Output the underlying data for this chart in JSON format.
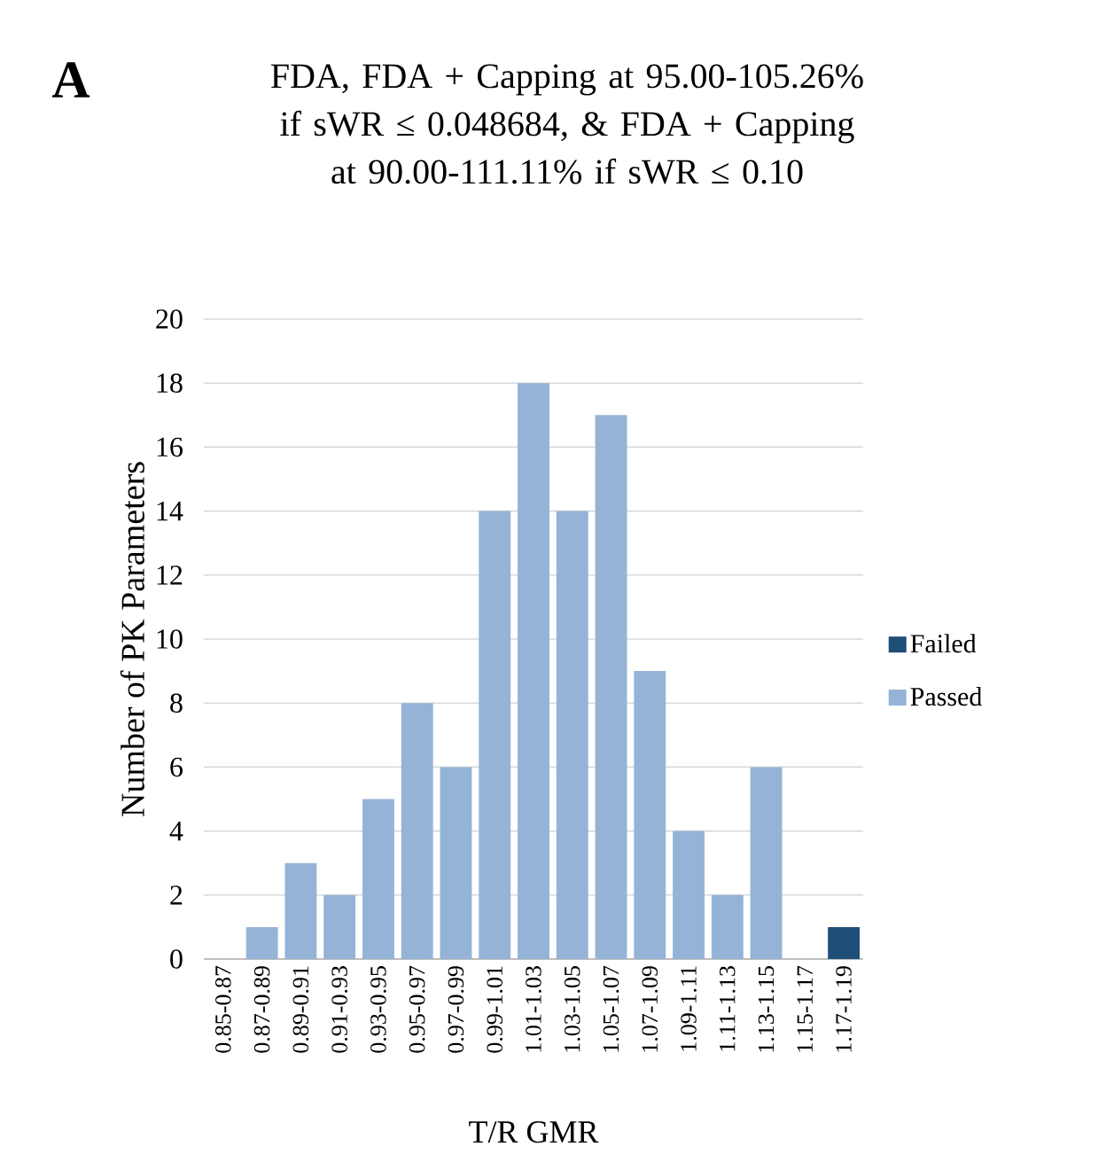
{
  "chart_data": {
    "type": "bar",
    "title": "FDA, FDA + Capping at 95.00-105.26% if sWR ≤ 0.048684, & FDA + Capping at 90.00-111.11% if sWR ≤ 0.10",
    "xlabel": "T/R GMR",
    "ylabel": "Number of PK Parameters",
    "annotations": [
      "A"
    ],
    "categories": [
      "0.85-0.87",
      "0.87-0.89",
      "0.89-0.91",
      "0.91-0.93",
      "0.93-0.95",
      "0.95-0.97",
      "0.97-0.99",
      "0.99-1.01",
      "1.01-1.03",
      "1.03-1.05",
      "1.05-1.07",
      "1.07-1.09",
      "1.09-1.11",
      "1.11-1.13",
      "1.13-1.15",
      "1.15-1.17",
      "1.17-1.19"
    ],
    "series": [
      {
        "name": "Passed",
        "color": "#95b3d7",
        "values": [
          0,
          1,
          3,
          2,
          5,
          8,
          6,
          14,
          18,
          14,
          17,
          9,
          4,
          2,
          6,
          0,
          0
        ]
      },
      {
        "name": "Failed",
        "color": "#1f4e79",
        "values": [
          0,
          0,
          0,
          0,
          0,
          0,
          0,
          0,
          0,
          0,
          0,
          0,
          0,
          0,
          0,
          0,
          1
        ]
      }
    ],
    "stacked": true,
    "ylim": [
      0,
      20
    ],
    "yticks": [
      0,
      2,
      4,
      6,
      8,
      10,
      12,
      14,
      16,
      18,
      20
    ],
    "grid": "y",
    "legend": "right"
  }
}
